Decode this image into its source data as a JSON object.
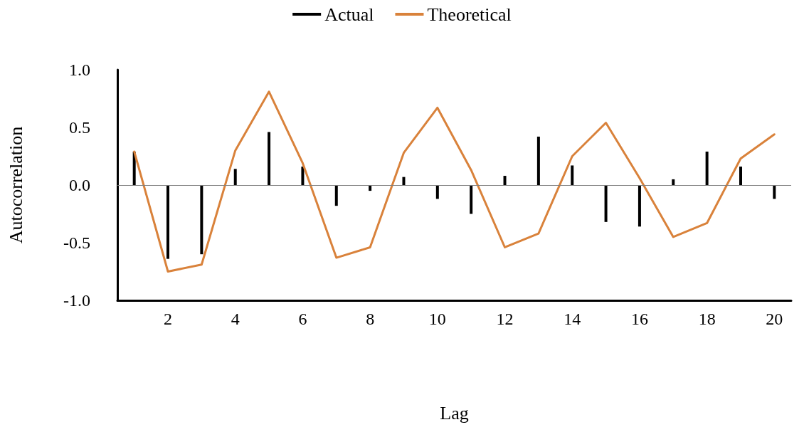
{
  "chart_data": {
    "type": "bar",
    "xlabel": "Lag",
    "ylabel": "Autocorrelation",
    "categories": [
      null,
      "2",
      null,
      "4",
      null,
      "6",
      null,
      "8",
      null,
      "10",
      null,
      "12",
      null,
      "14",
      null,
      "16",
      null,
      "18",
      null,
      "20"
    ],
    "series": [
      {
        "name": "Actual",
        "color": "#000000",
        "values": [
          0.29,
          -0.64,
          -0.6,
          0.14,
          0.46,
          0.16,
          -0.18,
          -0.05,
          0.07,
          -0.12,
          -0.25,
          0.08,
          0.42,
          0.17,
          -0.32,
          -0.36,
          0.05,
          0.29,
          0.16,
          -0.12
        ]
      },
      {
        "name": "Theoretical",
        "type": "line",
        "color": "#d9823b",
        "values": [
          0.29,
          -0.75,
          -0.69,
          0.3,
          0.81,
          0.19,
          -0.63,
          -0.54,
          0.28,
          0.67,
          0.13,
          -0.54,
          -0.42,
          0.25,
          0.54,
          0.06,
          -0.45,
          -0.33,
          0.23,
          0.44
        ]
      }
    ],
    "ylim": [
      -1,
      1
    ],
    "yticks": [
      {
        "value": -1,
        "label": "-1.0"
      },
      {
        "value": -0.5,
        "label": "-0.5"
      },
      {
        "value": 0,
        "label": "0.0"
      },
      {
        "value": 0.5,
        "label": "0.5"
      },
      {
        "value": 1,
        "label": "1.0"
      }
    ],
    "ref_lines": [
      {
        "axis": "y",
        "value": 0,
        "label": null,
        "color": "#808080"
      }
    ],
    "grid": false,
    "legend": "top",
    "marker": "none",
    "line_style": "solid"
  }
}
